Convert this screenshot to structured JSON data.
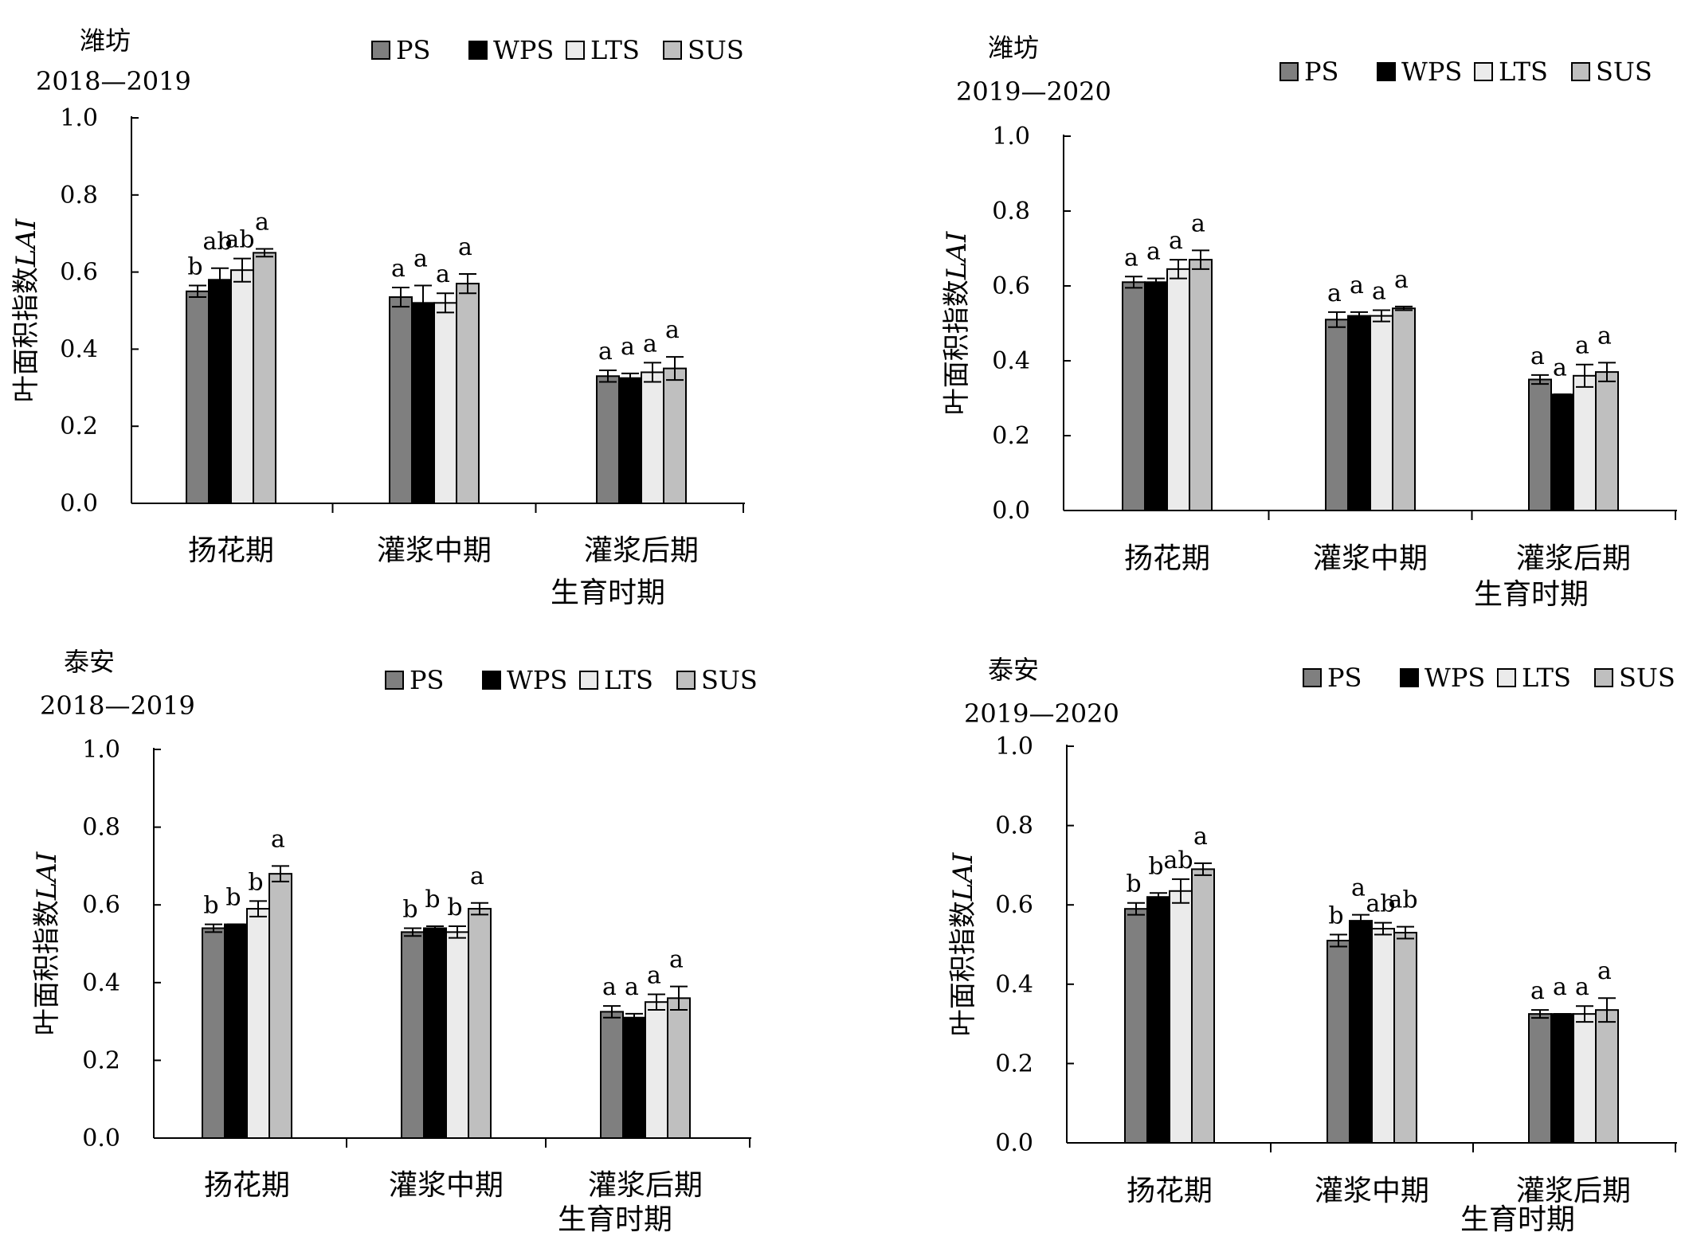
{
  "chart_data": [
    {
      "type": "bar",
      "title": "潍坊",
      "subtitle": "2018—2019",
      "xlabel": "生育时期",
      "ylabel": "叶面积指数",
      "ylabel_italic": "LAI",
      "ylim": [
        0,
        1
      ],
      "yticks": [
        "0.0",
        "0.2",
        "0.4",
        "0.6",
        "0.8",
        "1.0"
      ],
      "categories": [
        "扬花期",
        "灌浆中期",
        "灌浆后期"
      ],
      "legend": "top",
      "series": [
        {
          "name": "PS",
          "color": "#7f7f7f",
          "values": [
            0.55,
            0.535,
            0.33
          ],
          "errors": [
            0.015,
            0.025,
            0.015
          ]
        },
        {
          "name": "WPS",
          "color": "#000000",
          "values": [
            0.58,
            0.52,
            0.325
          ],
          "errors": [
            0.03,
            0.045,
            0.012
          ]
        },
        {
          "name": "LTS",
          "color": "#ebebeb",
          "values": [
            0.605,
            0.52,
            0.34
          ],
          "errors": [
            0.03,
            0.025,
            0.025
          ]
        },
        {
          "name": "SUS",
          "color": "#bfbfbf",
          "values": [
            0.65,
            0.57,
            0.35
          ],
          "errors": [
            0.01,
            0.025,
            0.03
          ]
        }
      ],
      "letters": [
        [
          "b",
          "ab",
          "ab",
          "a"
        ],
        [
          "a",
          "a",
          "a",
          "a"
        ],
        [
          "a",
          "a",
          "a",
          "a"
        ]
      ]
    },
    {
      "type": "bar",
      "title": "潍坊",
      "subtitle": "2019—2020",
      "xlabel": "生育时期",
      "ylabel": "叶面积指数",
      "ylabel_italic": "LAI",
      "ylim": [
        0,
        1
      ],
      "yticks": [
        "0.0",
        "0.2",
        "0.4",
        "0.6",
        "0.8",
        "1.0"
      ],
      "categories": [
        "扬花期",
        "灌浆中期",
        "灌浆后期"
      ],
      "legend": "top",
      "series": [
        {
          "name": "PS",
          "color": "#7f7f7f",
          "values": [
            0.61,
            0.51,
            0.35
          ],
          "errors": [
            0.015,
            0.02,
            0.012
          ]
        },
        {
          "name": "WPS",
          "color": "#000000",
          "values": [
            0.61,
            0.52,
            0.31
          ],
          "errors": [
            0.01,
            0.01,
            0.0
          ]
        },
        {
          "name": "LTS",
          "color": "#ebebeb",
          "values": [
            0.645,
            0.52,
            0.36
          ],
          "errors": [
            0.025,
            0.015,
            0.03
          ]
        },
        {
          "name": "SUS",
          "color": "#bfbfbf",
          "values": [
            0.67,
            0.54,
            0.37
          ],
          "errors": [
            0.025,
            0.005,
            0.025
          ]
        }
      ],
      "letters": [
        [
          "a",
          "a",
          "a",
          "a"
        ],
        [
          "a",
          "a",
          "a",
          "a"
        ],
        [
          "a",
          "a",
          "a",
          "a"
        ]
      ]
    },
    {
      "type": "bar",
      "title": "泰安",
      "subtitle": "2018—2019",
      "xlabel": "生育时期",
      "ylabel": "叶面积指数",
      "ylabel_italic": "LAI",
      "ylim": [
        0,
        1
      ],
      "yticks": [
        "0.0",
        "0.2",
        "0.4",
        "0.6",
        "0.8",
        "1.0"
      ],
      "categories": [
        "扬花期",
        "灌浆中期",
        "灌浆后期"
      ],
      "legend": "top",
      "series": [
        {
          "name": "PS",
          "color": "#7f7f7f",
          "values": [
            0.54,
            0.53,
            0.325
          ],
          "errors": [
            0.01,
            0.01,
            0.015
          ]
        },
        {
          "name": "WPS",
          "color": "#000000",
          "values": [
            0.55,
            0.54,
            0.31
          ],
          "errors": [
            0.0,
            0.005,
            0.01
          ]
        },
        {
          "name": "LTS",
          "color": "#ebebeb",
          "values": [
            0.59,
            0.53,
            0.35
          ],
          "errors": [
            0.02,
            0.015,
            0.02
          ]
        },
        {
          "name": "SUS",
          "color": "#bfbfbf",
          "values": [
            0.68,
            0.59,
            0.36
          ],
          "errors": [
            0.02,
            0.015,
            0.03
          ]
        }
      ],
      "letters": [
        [
          "b",
          "b",
          "b",
          "a"
        ],
        [
          "b",
          "b",
          "b",
          "a"
        ],
        [
          "a",
          "a",
          "a",
          "a"
        ]
      ]
    },
    {
      "type": "bar",
      "title": "泰安",
      "subtitle": "2019—2020",
      "xlabel": "生育时期",
      "ylabel": "叶面积指数",
      "ylabel_italic": "LAI",
      "ylim": [
        0,
        1
      ],
      "yticks": [
        "0.0",
        "0.2",
        "0.4",
        "0.6",
        "0.8",
        "1.0"
      ],
      "categories": [
        "扬花期",
        "灌浆中期",
        "灌浆后期"
      ],
      "legend": "top",
      "series": [
        {
          "name": "PS",
          "color": "#7f7f7f",
          "values": [
            0.59,
            0.51,
            0.325
          ],
          "errors": [
            0.015,
            0.015,
            0.01
          ]
        },
        {
          "name": "WPS",
          "color": "#000000",
          "values": [
            0.62,
            0.56,
            0.325
          ],
          "errors": [
            0.01,
            0.015,
            0.0
          ]
        },
        {
          "name": "LTS",
          "color": "#ebebeb",
          "values": [
            0.635,
            0.54,
            0.325
          ],
          "errors": [
            0.03,
            0.015,
            0.02
          ]
        },
        {
          "name": "SUS",
          "color": "#bfbfbf",
          "values": [
            0.69,
            0.53,
            0.335
          ],
          "errors": [
            0.015,
            0.015,
            0.03
          ]
        }
      ],
      "letters": [
        [
          "b",
          "b",
          "ab",
          "a"
        ],
        [
          "b",
          "a",
          "ab",
          "ab"
        ],
        [
          "a",
          "a",
          "a",
          "a"
        ]
      ]
    }
  ]
}
